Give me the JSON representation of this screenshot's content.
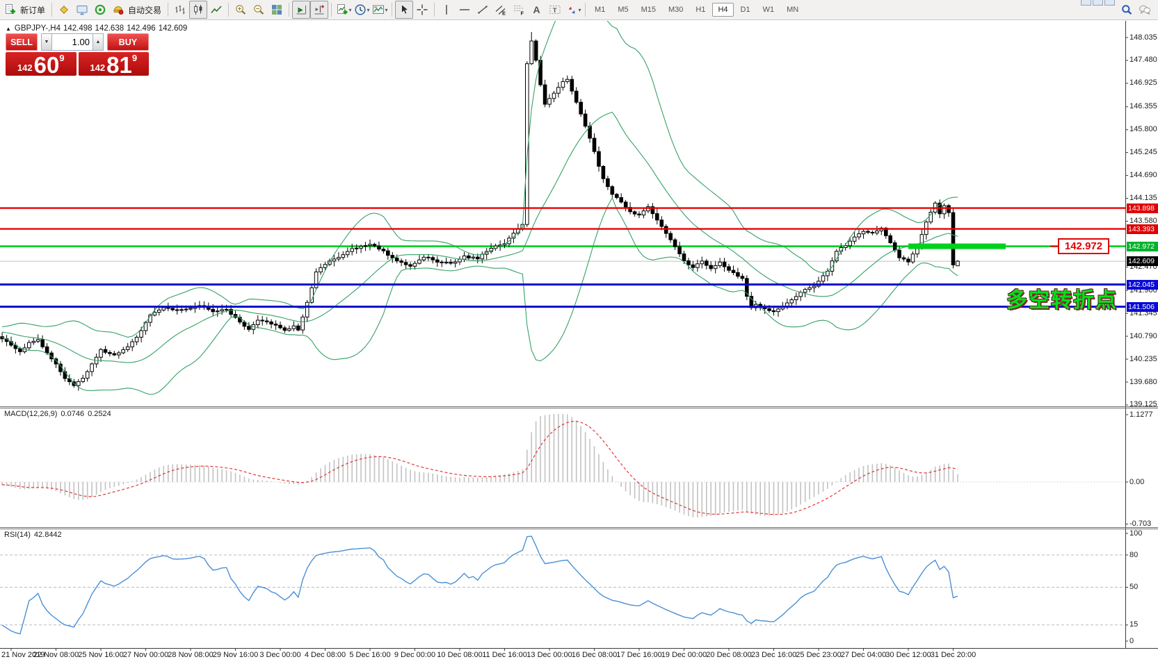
{
  "toolbar": {
    "items": [
      {
        "name": "new-order",
        "label": "新订单"
      },
      {
        "sep": true
      },
      {
        "name": "market-watch"
      },
      {
        "name": "terminal"
      },
      {
        "name": "navigator"
      },
      {
        "name": "auto-trading",
        "label": "自动交易"
      },
      {
        "sep": true
      },
      {
        "name": "bar-chart"
      },
      {
        "name": "candle-chart",
        "active": true
      },
      {
        "name": "line-chart"
      },
      {
        "sep": true
      },
      {
        "name": "zoom-in"
      },
      {
        "name": "zoom-out"
      },
      {
        "name": "tile-windows"
      },
      {
        "sep": true
      },
      {
        "name": "auto-scroll",
        "active": true
      },
      {
        "name": "chart-shift",
        "active": true
      },
      {
        "sep": true
      },
      {
        "name": "indicators",
        "dropdown": true
      },
      {
        "name": "periods",
        "dropdown": true
      },
      {
        "name": "templates",
        "dropdown": true
      },
      {
        "sep": true
      },
      {
        "name": "cursor",
        "active": true
      },
      {
        "name": "crosshair"
      },
      {
        "sep": true
      },
      {
        "name": "vertical-line"
      },
      {
        "name": "horizontal-line"
      },
      {
        "name": "trendline"
      },
      {
        "name": "equidistant-channel"
      },
      {
        "name": "fibonacci"
      },
      {
        "name": "text"
      },
      {
        "name": "text-label"
      },
      {
        "name": "arrows",
        "dropdown": true
      }
    ],
    "timeframes": [
      "M1",
      "M5",
      "M15",
      "M30",
      "H1",
      "H4",
      "D1",
      "W1",
      "MN"
    ],
    "active_timeframe": "H4",
    "right_icons": [
      "search",
      "chat"
    ]
  },
  "symbol_header": {
    "collapse_icon": "▲",
    "symbol": "GBPJPY-,H4",
    "open": "142.498",
    "high": "142.638",
    "low": "142.496",
    "close": "142.609"
  },
  "trade_panel": {
    "sell_label": "SELL",
    "buy_label": "BUY",
    "volume": "1.00",
    "spin_down": "▼",
    "spin_up": "▲",
    "sell_price": {
      "prefix": "142",
      "big": "60",
      "sup": "9"
    },
    "buy_price": {
      "prefix": "142",
      "big": "81",
      "sup": "9"
    }
  },
  "chart": {
    "price_ticks": [
      148.035,
      147.48,
      146.925,
      146.355,
      145.8,
      145.245,
      144.69,
      144.135,
      143.58,
      142.47,
      141.9,
      141.345,
      140.79,
      140.235,
      139.68,
      139.125
    ],
    "price_tags": [
      {
        "text": "143.898",
        "price": 143.898,
        "bg": "#e00000"
      },
      {
        "text": "143.393",
        "price": 143.393,
        "bg": "#e00000"
      },
      {
        "text": "142.972",
        "price": 142.972,
        "bg": "#00b32c"
      },
      {
        "text": "142.609",
        "price": 142.609,
        "bg": "#000000"
      },
      {
        "text": "142.045",
        "price": 142.045,
        "bg": "#0a0ad6"
      },
      {
        "text": "141.506",
        "price": 141.506,
        "bg": "#0a0ad6"
      }
    ],
    "hlines": [
      {
        "price": 143.898,
        "color": "#e80000",
        "width": 2.4
      },
      {
        "price": 143.393,
        "color": "#e80000",
        "width": 2.4
      },
      {
        "price": 142.045,
        "color": "#0a0ace",
        "width": 3
      },
      {
        "price": 141.506,
        "color": "#0a0ace",
        "width": 3
      }
    ],
    "bid_line": {
      "price": 142.609,
      "color": "#c0c0c0"
    },
    "level_marker": {
      "price": 142.972,
      "label": "142.972",
      "line_color": "#00d01e",
      "label_color": "#e00000"
    },
    "annotation": {
      "text": "多空转折点",
      "color": "#00e11c"
    },
    "dates": [
      "21 Nov 2019",
      "22 Nov 08:00",
      "25 Nov 16:00",
      "27 Nov 00:00",
      "28 Nov 08:00",
      "29 Nov 16:00",
      "3 Dec 00:00",
      "4 Dec 08:00",
      "5 Dec 16:00",
      "9 Dec 00:00",
      "10 Dec 08:00",
      "11 Dec 16:00",
      "13 Dec 00:00",
      "16 Dec 08:00",
      "17 Dec 16:00",
      "19 Dec 00:00",
      "20 Dec 08:00",
      "23 Dec 16:00",
      "25 Dec 23:00",
      "27 Dec 04:00",
      "30 Dec 12:00",
      "31 Dec 20:00"
    ],
    "bars_per_label": 10,
    "last_bar": {
      "open": 142.498,
      "high": 142.638,
      "low": 142.496,
      "close": 142.609
    },
    "spike_bar": {
      "high": 148.17
    },
    "anchors": [
      [
        -2,
        140.72
      ],
      [
        0,
        140.58
      ],
      [
        2,
        140.4
      ],
      [
        4,
        140.62
      ],
      [
        6,
        140.72
      ],
      [
        8,
        140.38
      ],
      [
        10,
        140.12
      ],
      [
        12,
        139.78
      ],
      [
        14,
        139.6
      ],
      [
        16,
        139.78
      ],
      [
        18,
        140.12
      ],
      [
        20,
        140.45
      ],
      [
        23,
        140.35
      ],
      [
        26,
        140.52
      ],
      [
        29,
        140.92
      ],
      [
        31,
        141.32
      ],
      [
        34,
        141.48
      ],
      [
        38,
        141.42
      ],
      [
        42,
        141.55
      ],
      [
        45,
        141.4
      ],
      [
        48,
        141.45
      ],
      [
        51,
        141.12
      ],
      [
        53,
        140.96
      ],
      [
        55,
        141.18
      ],
      [
        58,
        141.1
      ],
      [
        61,
        140.92
      ],
      [
        63,
        141.05
      ],
      [
        64,
        140.95
      ],
      [
        66,
        141.6
      ],
      [
        68,
        142.35
      ],
      [
        70,
        142.55
      ],
      [
        73,
        142.7
      ],
      [
        76,
        142.9
      ],
      [
        80,
        143.02
      ],
      [
        83,
        142.85
      ],
      [
        86,
        142.6
      ],
      [
        89,
        142.5
      ],
      [
        92,
        142.72
      ],
      [
        95,
        142.6
      ],
      [
        98,
        142.55
      ],
      [
        101,
        142.72
      ],
      [
        104,
        142.68
      ],
      [
        107,
        142.92
      ],
      [
        110,
        143.05
      ],
      [
        112,
        143.3
      ],
      [
        114,
        143.52
      ],
      [
        115,
        147.4
      ],
      [
        116,
        147.95
      ],
      [
        117,
        147.5
      ],
      [
        118,
        146.9
      ],
      [
        119,
        146.42
      ],
      [
        121,
        146.68
      ],
      [
        123,
        146.95
      ],
      [
        124,
        147.02
      ],
      [
        126,
        146.45
      ],
      [
        128,
        145.9
      ],
      [
        130,
        145.25
      ],
      [
        132,
        144.6
      ],
      [
        134,
        144.25
      ],
      [
        136,
        144.05
      ],
      [
        138,
        143.8
      ],
      [
        140,
        143.72
      ],
      [
        142,
        143.95
      ],
      [
        144,
        143.6
      ],
      [
        146,
        143.3
      ],
      [
        148,
        142.95
      ],
      [
        150,
        142.6
      ],
      [
        152,
        142.45
      ],
      [
        154,
        142.62
      ],
      [
        156,
        142.42
      ],
      [
        158,
        142.58
      ],
      [
        160,
        142.4
      ],
      [
        162,
        142.25
      ],
      [
        163,
        142.2
      ],
      [
        164,
        141.75
      ],
      [
        165,
        141.5
      ],
      [
        166,
        141.55
      ],
      [
        168,
        141.45
      ],
      [
        170,
        141.4
      ],
      [
        173,
        141.58
      ],
      [
        176,
        141.85
      ],
      [
        179,
        142.02
      ],
      [
        182,
        142.35
      ],
      [
        184,
        142.85
      ],
      [
        186,
        143.0
      ],
      [
        188,
        143.2
      ],
      [
        190,
        143.35
      ],
      [
        192,
        143.3
      ],
      [
        194,
        143.4
      ],
      [
        196,
        143.05
      ],
      [
        198,
        142.7
      ],
      [
        200,
        142.6
      ],
      [
        202,
        143.0
      ],
      [
        204,
        143.55
      ],
      [
        205,
        143.8
      ],
      [
        206,
        144.0
      ],
      [
        207,
        143.75
      ],
      [
        208,
        143.95
      ],
      [
        209,
        143.8
      ],
      [
        210,
        142.5
      ],
      [
        211,
        142.609
      ]
    ],
    "bollinger": {
      "period": 20,
      "deviation": 2,
      "color": "#35a164"
    },
    "candle_up": {
      "fill": "#ffffff",
      "stroke": "#000000"
    },
    "candle_down": {
      "fill": "#000000",
      "stroke": "#000000"
    }
  },
  "macd": {
    "name": "MACD(12,26,9)",
    "value_main": "0.0746",
    "value_signal": "0.2524",
    "axis": [
      {
        "text": "1.1277",
        "value": 1.1277
      },
      {
        "text": "0.00",
        "value": 0
      },
      {
        "text": "-0.703",
        "value": -0.703
      }
    ],
    "histogram_color": "#c2c2c2",
    "signal_color": "#e03535"
  },
  "rsi": {
    "name": "RSI(14)",
    "value": "42.8442",
    "axis": [
      {
        "text": "100",
        "value": 100
      },
      {
        "text": "80",
        "value": 80
      },
      {
        "text": "50",
        "value": 50
      },
      {
        "text": "15",
        "value": 15
      },
      {
        "text": "0",
        "value": 0
      }
    ],
    "levels": [
      80,
      50,
      15
    ],
    "line_color": "#4a8fd4"
  }
}
